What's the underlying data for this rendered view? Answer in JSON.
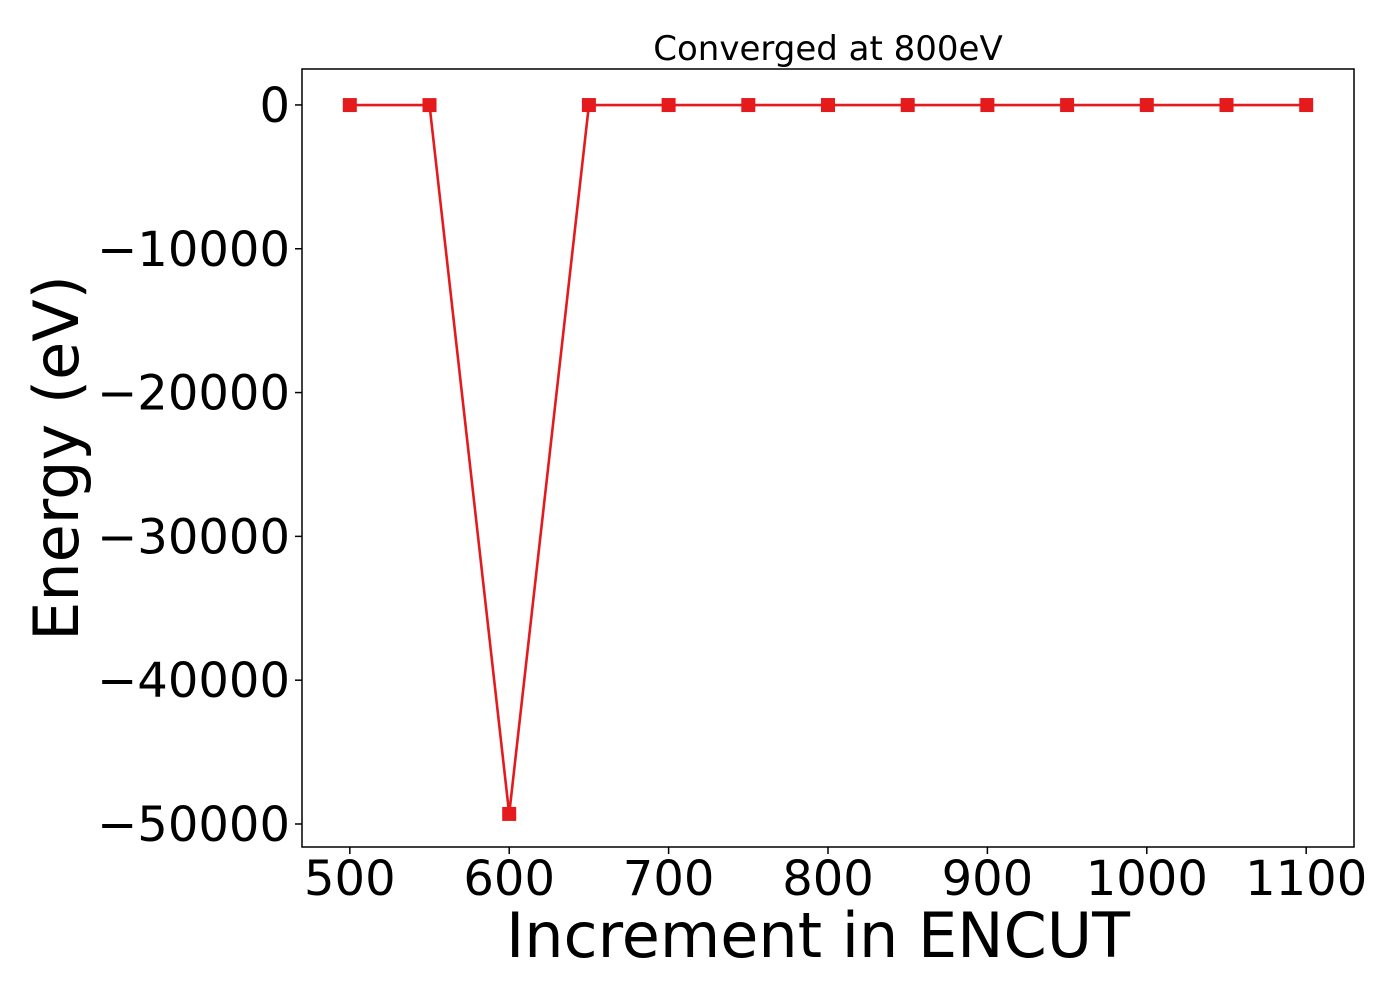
{
  "chart_data": {
    "type": "line",
    "title": "Converged at 800eV",
    "xlabel": "Increment in ENCUT",
    "ylabel": "Energy (eV)",
    "xlim": [
      470,
      1130
    ],
    "ylim": [
      -51600,
      2500
    ],
    "xticks": [
      500,
      600,
      700,
      800,
      900,
      1000,
      1100
    ],
    "yticks": [
      0,
      -10000,
      -20000,
      -30000,
      -40000,
      -50000
    ],
    "ytick_labels": [
      "0",
      "−10000",
      "−20000",
      "−30000",
      "−40000",
      "−50000"
    ],
    "grid": false,
    "legend": "none",
    "series": [
      {
        "color": "#e41a1c",
        "marker": "square",
        "x": [
          500,
          550,
          600,
          650,
          700,
          750,
          800,
          850,
          900,
          950,
          1000,
          1050,
          1100
        ],
        "y": [
          -8,
          -10,
          -49300,
          -6,
          -6,
          -6,
          -6,
          -6,
          -6,
          -6,
          -6,
          -6,
          -6
        ]
      }
    ]
  }
}
